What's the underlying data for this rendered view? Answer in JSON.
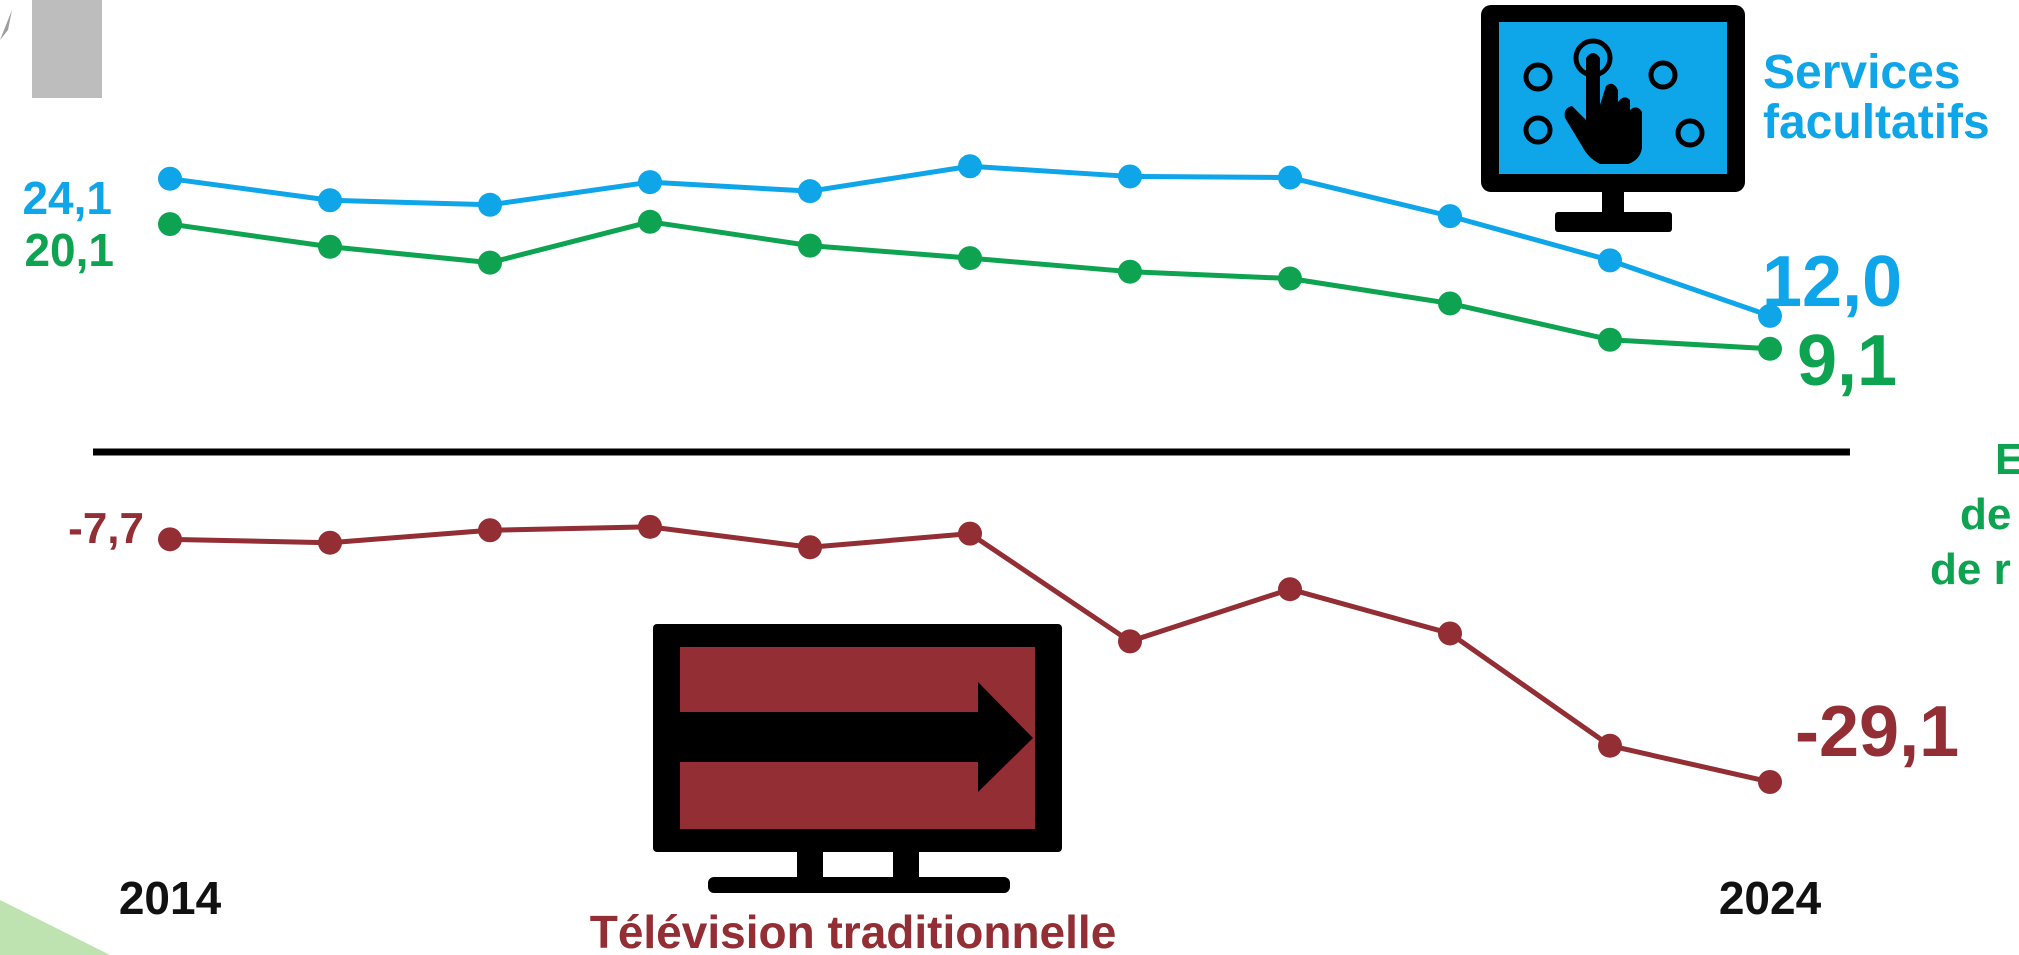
{
  "colors": {
    "services": "#0EA5E9",
    "distribution": "#0EA350",
    "traditional": "#922E34",
    "axis": "#000000"
  },
  "icons": {
    "services": "touchscreen-monitor-icon",
    "traditional": "tv-arrow-icon"
  },
  "labels": {
    "services_line1": "Services",
    "services_line2": "facultatifs",
    "distribution_line1": "E",
    "distribution_line2": "de",
    "distribution_line3": "de r",
    "traditional": "Télévision traditionnelle"
  },
  "chart_data": {
    "type": "line",
    "x": [
      2014,
      2015,
      2016,
      2017,
      2018,
      2019,
      2020,
      2021,
      2022,
      2023,
      2024
    ],
    "tick_labels": [
      "2014",
      "2024"
    ],
    "series": [
      {
        "key": "services",
        "values": [
          24.1,
          22.2,
          21.8,
          23.8,
          23.0,
          25.2,
          24.3,
          24.2,
          20.8,
          16.9,
          12.0
        ],
        "start_label": "24,1",
        "end_label": "12,0"
      },
      {
        "key": "distribution",
        "values": [
          20.1,
          18.1,
          16.7,
          20.3,
          18.2,
          17.1,
          15.9,
          15.3,
          13.1,
          9.9,
          9.1
        ],
        "start_label": "20,1",
        "end_label": "9,1"
      },
      {
        "key": "traditional",
        "values": [
          -7.7,
          -8.0,
          -6.9,
          -6.6,
          -8.4,
          -7.2,
          -16.7,
          -12.1,
          -16.0,
          -25.9,
          -29.1
        ],
        "start_label": "-7,7",
        "end_label": "-29,1"
      }
    ]
  }
}
